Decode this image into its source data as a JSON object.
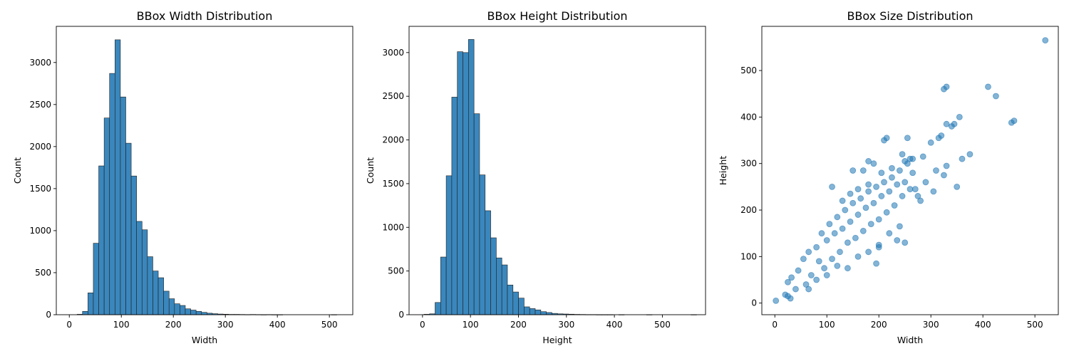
{
  "colors": {
    "bar": "#3a87bd",
    "point": "#1f77b4"
  },
  "chart_data": [
    {
      "type": "bar",
      "title": "BBox Width Distribution",
      "xlabel": "Width",
      "ylabel": "Count",
      "xlim": [
        -25,
        545
      ],
      "ylim": [
        0,
        3430
      ],
      "xticks": [
        0,
        100,
        200,
        300,
        400,
        500
      ],
      "yticks": [
        0,
        500,
        1000,
        1500,
        2000,
        2500,
        3000
      ],
      "bin_width": 10.4,
      "bin_start": 15,
      "counts": [
        5,
        40,
        260,
        850,
        1770,
        2340,
        2870,
        3270,
        2590,
        2040,
        1650,
        1110,
        1010,
        690,
        520,
        440,
        280,
        190,
        130,
        110,
        70,
        55,
        40,
        28,
        18,
        12,
        8,
        6,
        4,
        4,
        3,
        2,
        3,
        2,
        1,
        2,
        1,
        1,
        0,
        0,
        0,
        0,
        0,
        0,
        0,
        0,
        0,
        1
      ]
    },
    {
      "type": "bar",
      "title": "BBox Height Distribution",
      "xlabel": "Height",
      "ylabel": "Count",
      "xlim": [
        -28,
        590
      ],
      "ylim": [
        0,
        3300
      ],
      "xticks": [
        0,
        100,
        200,
        300,
        400,
        500
      ],
      "yticks": [
        0,
        500,
        1000,
        1500,
        2000,
        2500,
        3000
      ],
      "bin_width": 11.6,
      "bin_start": 3,
      "counts": [
        5,
        10,
        140,
        660,
        1590,
        2490,
        3010,
        3000,
        3150,
        2300,
        1600,
        1190,
        880,
        650,
        570,
        340,
        260,
        190,
        90,
        70,
        55,
        35,
        25,
        15,
        10,
        8,
        6,
        4,
        3,
        2,
        2,
        1,
        1,
        1,
        0,
        1,
        0,
        0,
        0,
        0,
        1,
        0,
        0,
        0,
        0,
        0,
        0,
        0,
        1
      ]
    },
    {
      "type": "scatter",
      "title": "BBox Size Distribution",
      "xlabel": "Width",
      "ylabel": "Height",
      "xlim": [
        -25,
        545
      ],
      "ylim": [
        -25,
        595
      ],
      "xticks": [
        0,
        100,
        200,
        300,
        400,
        500
      ],
      "yticks": [
        0,
        100,
        200,
        300,
        400,
        500
      ],
      "points": [
        [
          2,
          5
        ],
        [
          20,
          18
        ],
        [
          25,
          15
        ],
        [
          30,
          10
        ],
        [
          25,
          45
        ],
        [
          32,
          55
        ],
        [
          40,
          30
        ],
        [
          45,
          70
        ],
        [
          55,
          95
        ],
        [
          60,
          40
        ],
        [
          65,
          110
        ],
        [
          70,
          60
        ],
        [
          80,
          120
        ],
        [
          85,
          90
        ],
        [
          90,
          150
        ],
        [
          95,
          75
        ],
        [
          100,
          135
        ],
        [
          105,
          170
        ],
        [
          110,
          95
        ],
        [
          115,
          150
        ],
        [
          120,
          185
        ],
        [
          125,
          110
        ],
        [
          130,
          160
        ],
        [
          135,
          200
        ],
        [
          140,
          130
        ],
        [
          145,
          175
        ],
        [
          150,
          215
        ],
        [
          155,
          140
        ],
        [
          160,
          190
        ],
        [
          165,
          225
        ],
        [
          170,
          155
        ],
        [
          175,
          205
        ],
        [
          180,
          240
        ],
        [
          185,
          170
        ],
        [
          190,
          215
        ],
        [
          195,
          250
        ],
        [
          200,
          180
        ],
        [
          205,
          230
        ],
        [
          210,
          260
        ],
        [
          215,
          195
        ],
        [
          220,
          240
        ],
        [
          225,
          270
        ],
        [
          230,
          210
        ],
        [
          235,
          255
        ],
        [
          240,
          285
        ],
        [
          245,
          230
        ],
        [
          250,
          260
        ],
        [
          255,
          300
        ],
        [
          260,
          245
        ],
        [
          265,
          280
        ],
        [
          130,
          220
        ],
        [
          145,
          235
        ],
        [
          160,
          245
        ],
        [
          180,
          255
        ],
        [
          205,
          280
        ],
        [
          225,
          290
        ],
        [
          250,
          305
        ],
        [
          260,
          310
        ],
        [
          65,
          30
        ],
        [
          80,
          50
        ],
        [
          100,
          60
        ],
        [
          120,
          80
        ],
        [
          140,
          75
        ],
        [
          160,
          100
        ],
        [
          180,
          110
        ],
        [
          200,
          125
        ],
        [
          220,
          150
        ],
        [
          240,
          165
        ],
        [
          110,
          250
        ],
        [
          170,
          285
        ],
        [
          190,
          300
        ],
        [
          210,
          350
        ],
        [
          215,
          355
        ],
        [
          245,
          320
        ],
        [
          255,
          355
        ],
        [
          265,
          310
        ],
        [
          270,
          245
        ],
        [
          275,
          230
        ],
        [
          280,
          220
        ],
        [
          285,
          315
        ],
        [
          290,
          260
        ],
        [
          300,
          345
        ],
        [
          305,
          240
        ],
        [
          310,
          285
        ],
        [
          315,
          355
        ],
        [
          320,
          360
        ],
        [
          325,
          275
        ],
        [
          330,
          295
        ],
        [
          330,
          385
        ],
        [
          340,
          380
        ],
        [
          345,
          385
        ],
        [
          355,
          400
        ],
        [
          360,
          310
        ],
        [
          375,
          320
        ],
        [
          350,
          250
        ],
        [
          325,
          460
        ],
        [
          330,
          465
        ],
        [
          410,
          465
        ],
        [
          425,
          445
        ],
        [
          455,
          388
        ],
        [
          460,
          392
        ],
        [
          520,
          565
        ],
        [
          200,
          120
        ],
        [
          235,
          135
        ],
        [
          250,
          130
        ],
        [
          195,
          85
        ],
        [
          150,
          285
        ],
        [
          180,
          305
        ]
      ]
    }
  ]
}
